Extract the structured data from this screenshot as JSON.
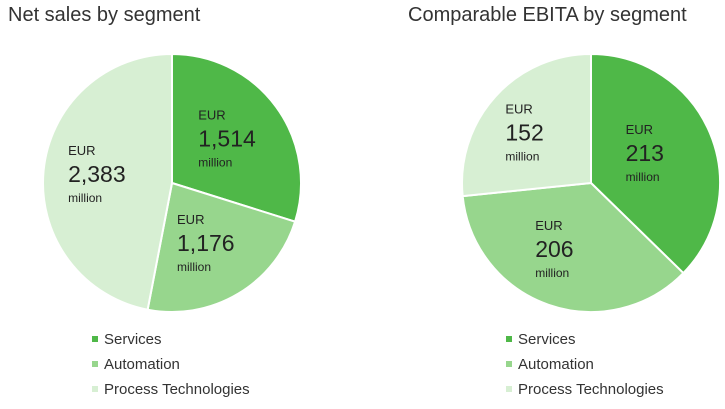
{
  "colors": {
    "services": "#4fb848",
    "automation": "#97d68d",
    "process_technologies": "#d7efd3",
    "slice_border": "#ffffff"
  },
  "chart_data": [
    {
      "type": "pie",
      "title": "Net sales by segment",
      "unit_prefix": "EUR",
      "unit_suffix": "million",
      "slices": [
        {
          "name": "Services",
          "value": 1514,
          "display": "1,514",
          "color": "#4fb848"
        },
        {
          "name": "Automation",
          "value": 1176,
          "display": "1,176",
          "color": "#97d68d"
        },
        {
          "name": "Process Technologies",
          "value": 2383,
          "display": "2,383",
          "color": "#d7efd3"
        }
      ],
      "legend": [
        "Services",
        "Automation",
        "Process Technologies"
      ],
      "legend_position": "bottom"
    },
    {
      "type": "pie",
      "title": "Comparable EBITA by segment",
      "unit_prefix": "EUR",
      "unit_suffix": "million",
      "slices": [
        {
          "name": "Services",
          "value": 213,
          "display": "213",
          "color": "#4fb848"
        },
        {
          "name": "Automation",
          "value": 206,
          "display": "206",
          "color": "#97d68d"
        },
        {
          "name": "Process Technologies",
          "value": 152,
          "display": "152",
          "color": "#d7efd3"
        }
      ],
      "legend": [
        "Services",
        "Automation",
        "Process Technologies"
      ],
      "legend_position": "bottom"
    }
  ]
}
